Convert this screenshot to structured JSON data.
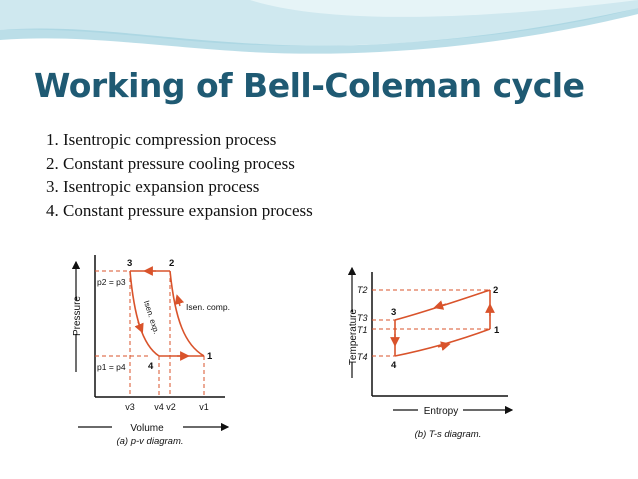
{
  "slide": {
    "title": "Working of Bell-Coleman cycle",
    "steps": [
      "1. Isentropic compression process",
      "2. Constant pressure cooling process",
      "3. Isentropic expansion process",
      "4. Constant pressure expansion process"
    ]
  },
  "colors": {
    "title": "#1f5a73",
    "curve": "#d9532b",
    "banner": "#cde8ef",
    "dashed": "#d9532b"
  },
  "pv_diagram": {
    "y_axis_label": "Pressure",
    "x_axis_label": "Volume",
    "caption": "(a) p-v diagram.",
    "p_high_label": "p2 = p3",
    "p_low_label": "p1 = p4",
    "v_ticks": [
      "v3",
      "v4",
      "v2",
      "v1"
    ],
    "points": {
      "p1": "1",
      "p2": "2",
      "p3": "3",
      "p4": "4"
    },
    "compression_label": "Isen. comp.",
    "expansion_label": "Isen. exp."
  },
  "ts_diagram": {
    "y_axis_label": "Temperature",
    "x_axis_label": "Entropy",
    "caption": "(b) T-s diagram.",
    "t_ticks": [
      "T2",
      "T3",
      "T1",
      "T4"
    ],
    "points": {
      "p1": "1",
      "p2": "2",
      "p3": "3",
      "p4": "4"
    }
  }
}
